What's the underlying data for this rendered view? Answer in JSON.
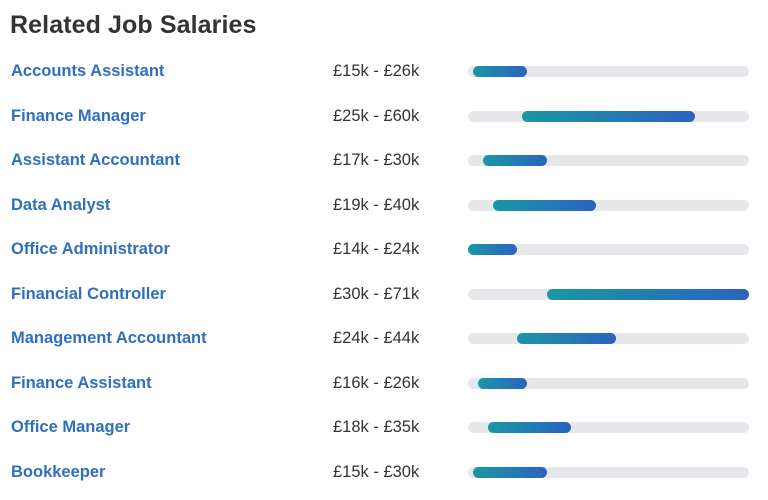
{
  "header": {
    "title": "Related Job Salaries"
  },
  "scale": {
    "min_k": 14,
    "max_k": 71
  },
  "colors": {
    "link": "#2f6fbd",
    "text": "#333333",
    "track": "#e6e7eb",
    "bar_gradient_start": "#1b97a6",
    "bar_gradient_end": "#2b63bf"
  },
  "jobs": [
    {
      "title": "Accounts Assistant",
      "salary": "£15k - £26k",
      "min_k": 15,
      "max_k": 26
    },
    {
      "title": "Finance Manager",
      "salary": "£25k - £60k",
      "min_k": 25,
      "max_k": 60
    },
    {
      "title": "Assistant Accountant",
      "salary": "£17k - £30k",
      "min_k": 17,
      "max_k": 30
    },
    {
      "title": "Data Analyst",
      "salary": "£19k - £40k",
      "min_k": 19,
      "max_k": 40
    },
    {
      "title": "Office Administrator",
      "salary": "£14k - £24k",
      "min_k": 14,
      "max_k": 24
    },
    {
      "title": "Financial Controller",
      "salary": "£30k - £71k",
      "min_k": 30,
      "max_k": 71
    },
    {
      "title": "Management Accountant",
      "salary": "£24k - £44k",
      "min_k": 24,
      "max_k": 44
    },
    {
      "title": "Finance Assistant",
      "salary": "£16k - £26k",
      "min_k": 16,
      "max_k": 26
    },
    {
      "title": "Office Manager",
      "salary": "£18k - £35k",
      "min_k": 18,
      "max_k": 35
    },
    {
      "title": "Bookkeeper",
      "salary": "£15k - £30k",
      "min_k": 15,
      "max_k": 30
    }
  ]
}
